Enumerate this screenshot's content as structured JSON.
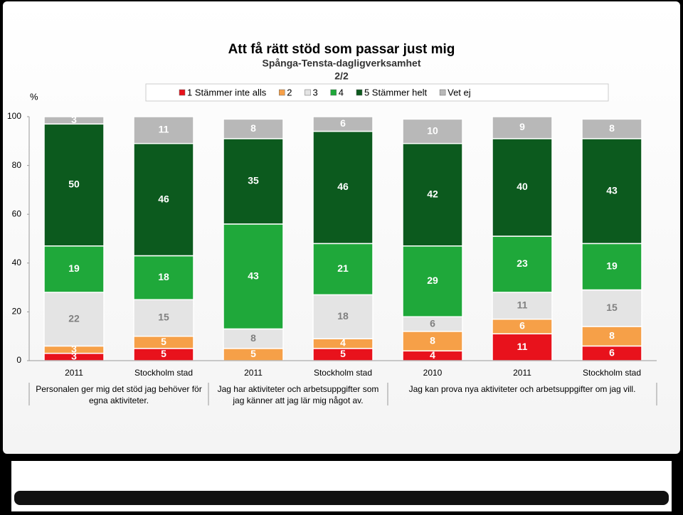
{
  "chart_data": {
    "type": "stacked_bar",
    "title": "Att få rätt stöd som passar just mig",
    "subtitle": "Spånga-Tensta-dagligverksamhet",
    "page": "2/2",
    "y_label": "%",
    "groups": [
      {
        "label": "Personalen ger mig det stöd jag behöver för egna aktiviteter.",
        "categories": [
          "2011",
          "Stockholm stad"
        ]
      },
      {
        "label": "Jag har aktiviteter och arbetsuppgifter som jag känner att jag lär mig något av.",
        "categories": [
          "2011",
          "Stockholm stad"
        ]
      },
      {
        "label": "Jag kan prova nya aktiviteter och arbetsuppgifter om jag vill.",
        "categories": [
          "2010",
          "2011",
          "Stockholm stad"
        ]
      }
    ],
    "series": [
      {
        "name": "1 Stämmer inte alls",
        "color": "#e8121c",
        "label_color": "#ffffff",
        "values": [
          3,
          5,
          null,
          5,
          4,
          11,
          6
        ]
      },
      {
        "name": "2",
        "color": "#f6a048",
        "label_color": "#ffffff",
        "values": [
          3,
          5,
          5,
          4,
          8,
          6,
          8
        ]
      },
      {
        "name": "3",
        "color": "#e4e4e4",
        "label_color": "#808080",
        "values": [
          22,
          15,
          8,
          18,
          6,
          11,
          15
        ]
      },
      {
        "name": "4",
        "color": "#1fa83a",
        "label_color": "#ffffff",
        "values": [
          19,
          18,
          43,
          21,
          29,
          23,
          19
        ]
      },
      {
        "name": "5 Stämmer helt",
        "color": "#0c5a1e",
        "label_color": "#ffffff",
        "values": [
          50,
          46,
          35,
          46,
          42,
          40,
          43
        ]
      },
      {
        "name": "Vet ej",
        "color": "#b8b8b8",
        "label_color": "#ffffff",
        "values": [
          3,
          11,
          8,
          6,
          10,
          9,
          8
        ]
      }
    ],
    "ylim": [
      0,
      100
    ],
    "yticks": [
      0,
      20,
      40,
      60,
      80,
      100
    ]
  }
}
